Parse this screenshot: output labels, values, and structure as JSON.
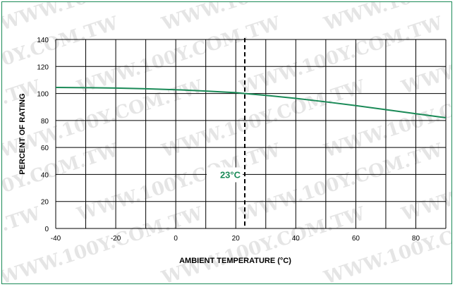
{
  "watermark": "WWW.100Y.COM.TW",
  "chart_data": {
    "type": "line",
    "title": "",
    "xlabel": "AMBIENT TEMPERATURE (°C)",
    "ylabel": "PERCENT OF RATING",
    "xlim": [
      -40,
      90
    ],
    "ylim": [
      0,
      140
    ],
    "x_ticks": [
      -40,
      -20,
      0,
      20,
      40,
      60,
      80
    ],
    "y_ticks": [
      0,
      20,
      40,
      60,
      80,
      100,
      120,
      140
    ],
    "grid": true,
    "series": [
      {
        "color": "#1a8a57",
        "x": [
          -40,
          -30,
          -20,
          -10,
          0,
          10,
          20,
          23,
          30,
          40,
          50,
          60,
          70,
          80,
          90
        ],
        "y": [
          104.5,
          104.3,
          104,
          103.5,
          102.8,
          101.8,
          100.6,
          100,
          98.6,
          96.4,
          93.8,
          91,
          88,
          85,
          82
        ]
      }
    ],
    "annotation": {
      "label": "23°C",
      "x": 23,
      "color": "#1a8a57"
    }
  }
}
